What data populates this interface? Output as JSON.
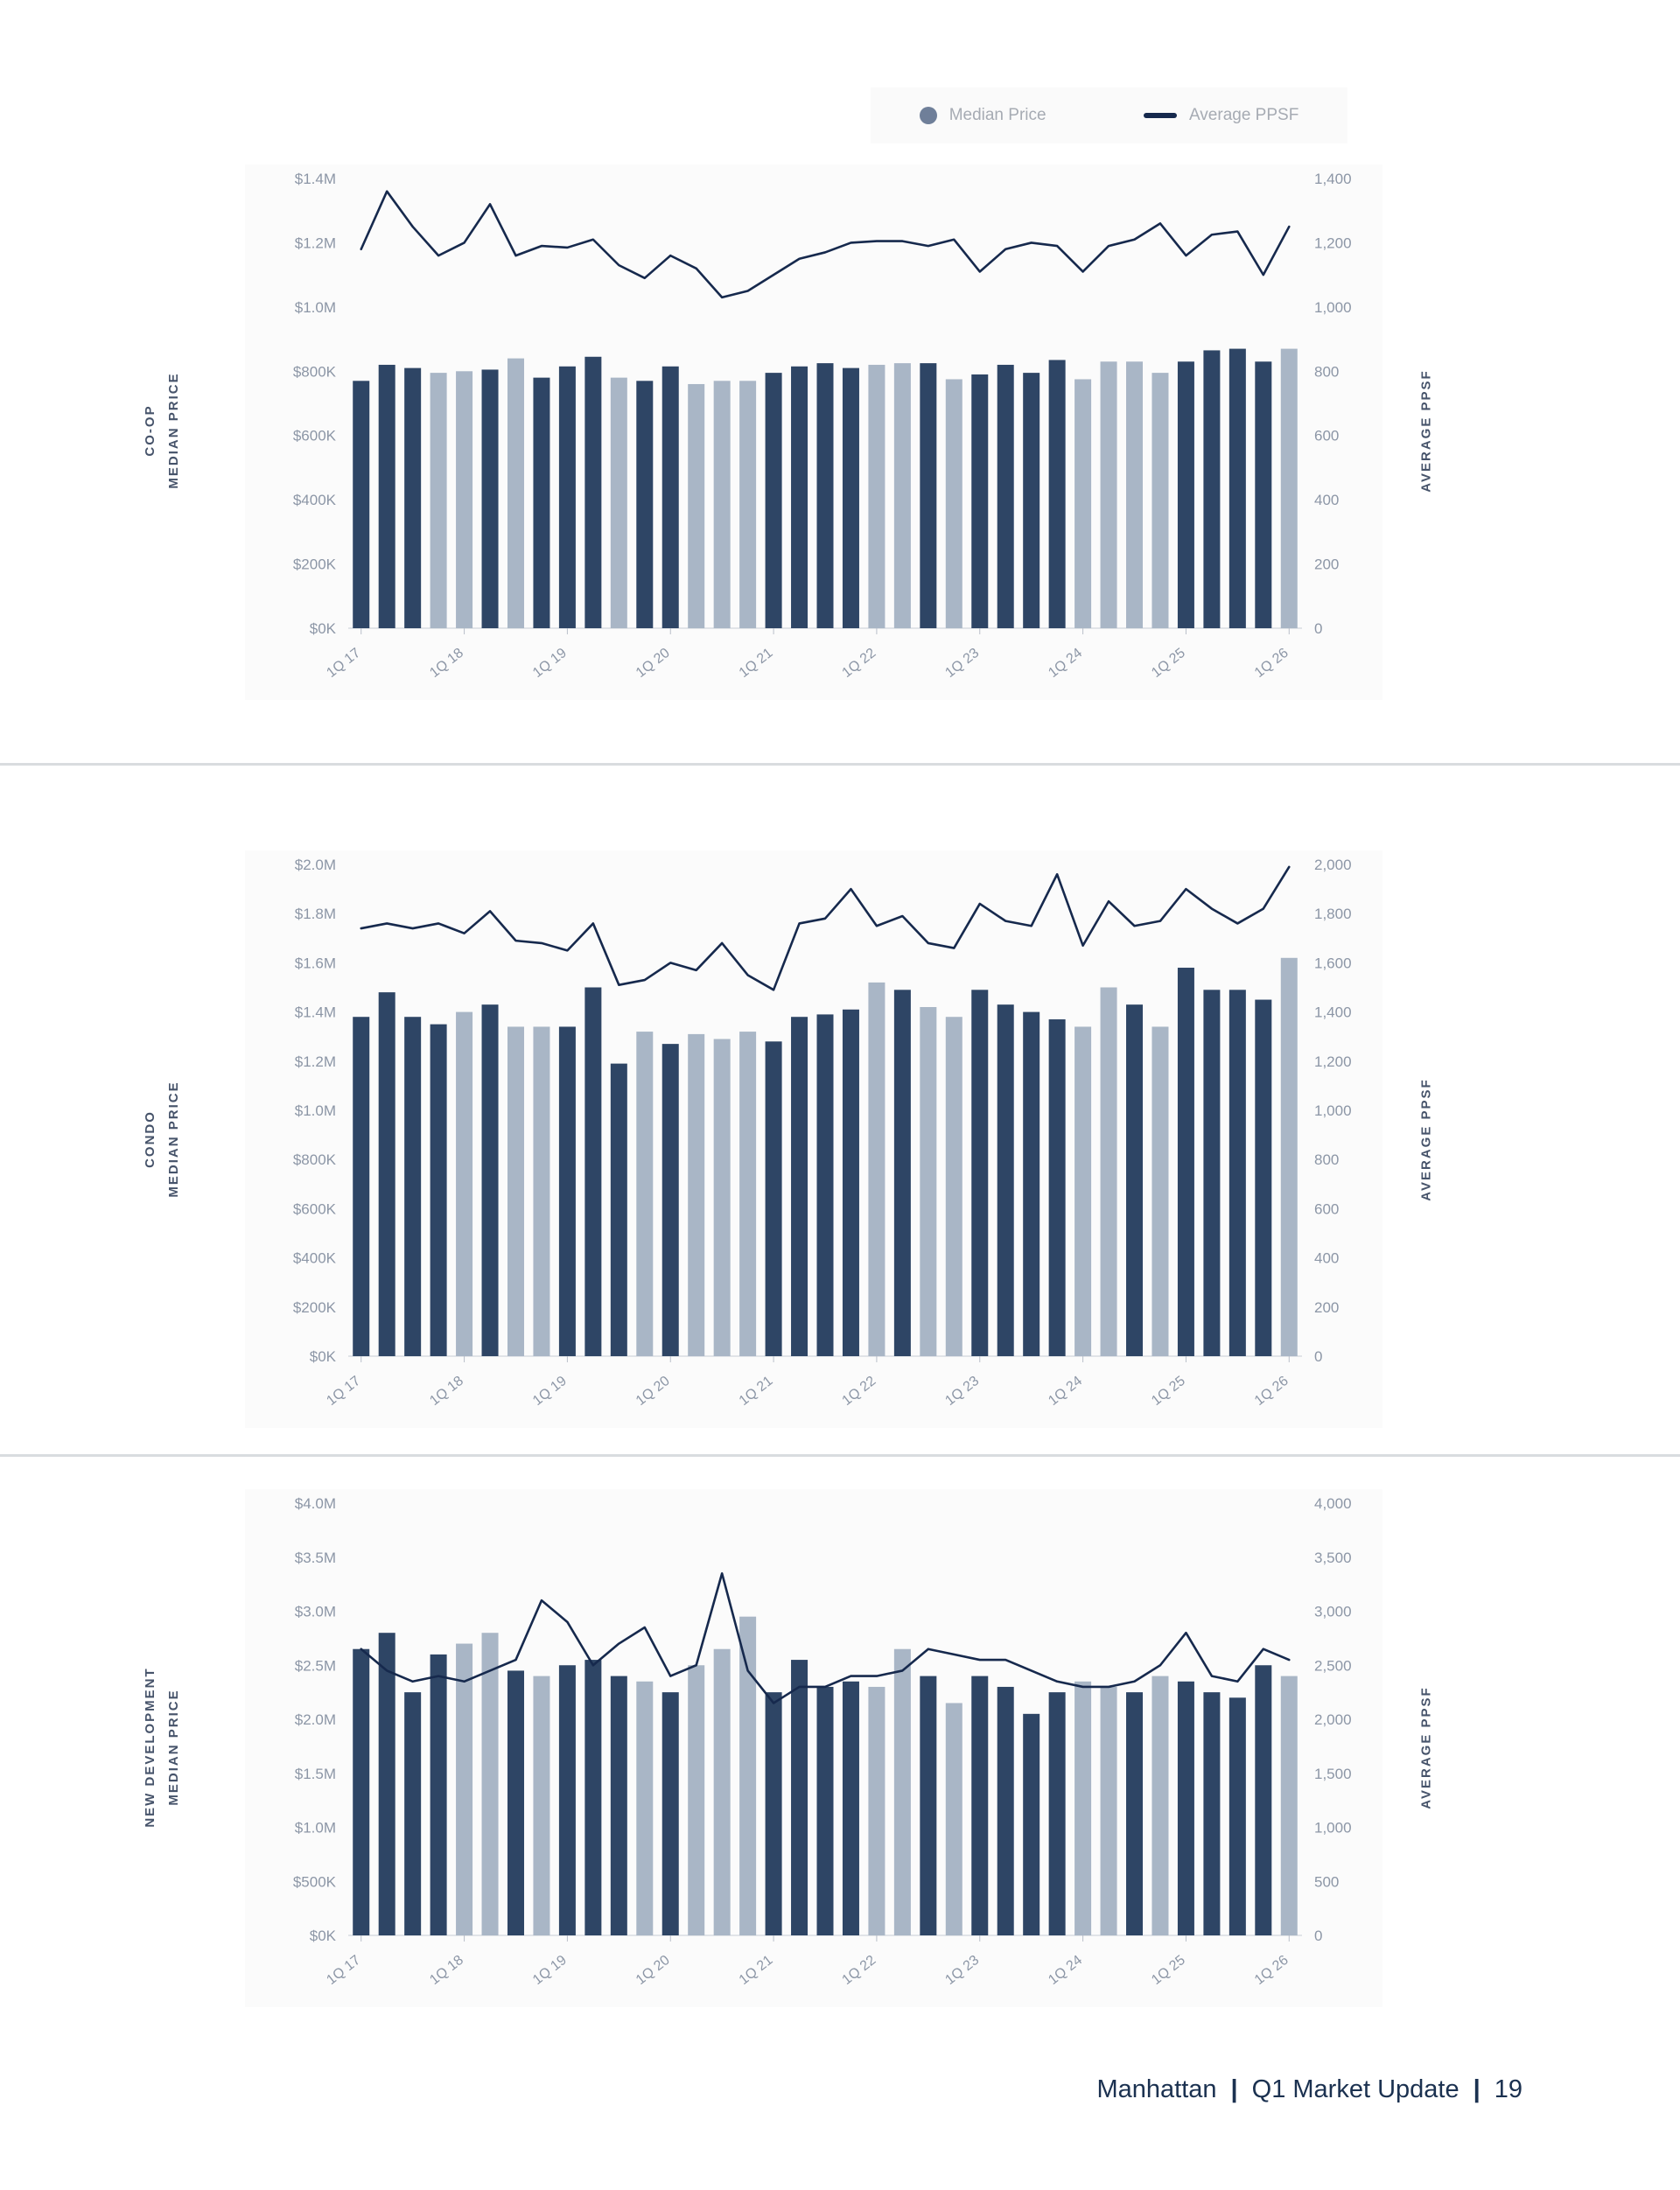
{
  "legend": {
    "median_label": "Median Price",
    "ppsf_label": "Average PPSF"
  },
  "footer": {
    "left": "Manhattan",
    "sep": "|",
    "middle": "Q1 Market Update",
    "page": "19"
  },
  "colors": {
    "bar_dark": "#2e4565",
    "bar_light": "#a9b6c6",
    "line": "#16294d",
    "axis_text": "#8c96a6",
    "legend_dot": "#6f7f99"
  },
  "chart_data": [
    {
      "type": "bar",
      "section_label": "CO-OP",
      "axis_label_left": "MEDIAN PRICE",
      "axis_label_right": "AVERAGE PPSF",
      "categories": [
        "1Q17",
        "2Q17",
        "3Q17",
        "4Q17",
        "1Q18",
        "2Q18",
        "3Q18",
        "4Q18",
        "1Q19",
        "2Q19",
        "3Q19",
        "4Q19",
        "1Q20",
        "2Q20",
        "3Q20",
        "4Q20",
        "1Q21",
        "2Q21",
        "3Q21",
        "4Q21",
        "1Q22",
        "2Q22",
        "3Q22",
        "4Q22",
        "1Q23",
        "2Q23",
        "3Q23",
        "4Q23",
        "1Q24",
        "2Q24",
        "3Q24",
        "4Q24",
        "1Q25",
        "2Q25",
        "3Q25",
        "4Q25",
        "1Q26"
      ],
      "series": [
        {
          "name": "Median Price",
          "unit": "USD thousands",
          "values": [
            770,
            820,
            810,
            795,
            800,
            805,
            840,
            780,
            815,
            845,
            780,
            770,
            815,
            760,
            770,
            770,
            795,
            815,
            825,
            810,
            820,
            825,
            825,
            775,
            790,
            820,
            795,
            835,
            775,
            830,
            830,
            795,
            830,
            865,
            870,
            830,
            870
          ]
        },
        {
          "name": "Average PPSF",
          "unit": "USD per sq ft",
          "values": [
            1180,
            1360,
            1250,
            1160,
            1200,
            1320,
            1160,
            1190,
            1185,
            1210,
            1130,
            1090,
            1160,
            1120,
            1030,
            1050,
            1100,
            1150,
            1170,
            1200,
            1205,
            1205,
            1190,
            1210,
            1110,
            1180,
            1200,
            1190,
            1110,
            1190,
            1210,
            1260,
            1160,
            1225,
            1235,
            1100,
            1250
          ]
        }
      ],
      "bar_shades": [
        "d",
        "d",
        "d",
        "l",
        "l",
        "d",
        "l",
        "d",
        "d",
        "d",
        "l",
        "d",
        "d",
        "l",
        "l",
        "l",
        "d",
        "d",
        "d",
        "d",
        "l",
        "l",
        "d",
        "l",
        "d",
        "d",
        "d",
        "d",
        "l",
        "l",
        "l",
        "l",
        "d",
        "d",
        "d",
        "d",
        "l"
      ],
      "left_max": 1400,
      "right_max": 1400,
      "xtick_every": 4,
      "left_ticks": [
        {
          "v": 0,
          "label": "$0K"
        },
        {
          "v": 200,
          "label": "$200K"
        },
        {
          "v": 400,
          "label": "$400K"
        },
        {
          "v": 600,
          "label": "$600K"
        },
        {
          "v": 800,
          "label": "$800K"
        },
        {
          "v": 1000,
          "label": "$1.0M"
        },
        {
          "v": 1200,
          "label": "$1.2M"
        },
        {
          "v": 1400,
          "label": "$1.4M"
        }
      ],
      "right_ticks": [
        {
          "v": 0,
          "label": "0"
        },
        {
          "v": 200,
          "label": "200"
        },
        {
          "v": 400,
          "label": "400"
        },
        {
          "v": 600,
          "label": "600"
        },
        {
          "v": 800,
          "label": "800"
        },
        {
          "v": 1000,
          "label": "1,000"
        },
        {
          "v": 1200,
          "label": "1,200"
        },
        {
          "v": 1400,
          "label": "1,400"
        }
      ]
    },
    {
      "type": "bar",
      "section_label": "CONDO",
      "axis_label_left": "MEDIAN PRICE",
      "axis_label_right": "AVERAGE PPSF",
      "categories": [
        "1Q17",
        "2Q17",
        "3Q17",
        "4Q17",
        "1Q18",
        "2Q18",
        "3Q18",
        "4Q18",
        "1Q19",
        "2Q19",
        "3Q19",
        "4Q19",
        "1Q20",
        "2Q20",
        "3Q20",
        "4Q20",
        "1Q21",
        "2Q21",
        "3Q21",
        "4Q21",
        "1Q22",
        "2Q22",
        "3Q22",
        "4Q22",
        "1Q23",
        "2Q23",
        "3Q23",
        "4Q23",
        "1Q24",
        "2Q24",
        "3Q24",
        "4Q24",
        "1Q25",
        "2Q25",
        "3Q25",
        "4Q25",
        "1Q26"
      ],
      "series": [
        {
          "name": "Median Price",
          "unit": "USD thousands",
          "values": [
            1380,
            1480,
            1380,
            1350,
            1400,
            1430,
            1340,
            1340,
            1340,
            1500,
            1190,
            1320,
            1270,
            1310,
            1290,
            1320,
            1280,
            1380,
            1390,
            1410,
            1520,
            1490,
            1420,
            1380,
            1490,
            1430,
            1400,
            1370,
            1340,
            1500,
            1430,
            1340,
            1580,
            1490,
            1490,
            1450,
            1620
          ]
        },
        {
          "name": "Average PPSF",
          "unit": "USD per sq ft",
          "values": [
            1740,
            1760,
            1740,
            1760,
            1720,
            1810,
            1690,
            1680,
            1650,
            1760,
            1510,
            1530,
            1600,
            1570,
            1680,
            1550,
            1490,
            1760,
            1780,
            1900,
            1750,
            1790,
            1680,
            1660,
            1840,
            1770,
            1750,
            1960,
            1670,
            1850,
            1750,
            1770,
            1900,
            1820,
            1760,
            1820,
            1990
          ]
        }
      ],
      "bar_shades": [
        "d",
        "d",
        "d",
        "d",
        "l",
        "d",
        "l",
        "l",
        "d",
        "d",
        "d",
        "l",
        "d",
        "l",
        "l",
        "l",
        "d",
        "d",
        "d",
        "d",
        "l",
        "d",
        "l",
        "l",
        "d",
        "d",
        "d",
        "d",
        "l",
        "l",
        "d",
        "l",
        "d",
        "d",
        "d",
        "d",
        "l"
      ],
      "left_max": 2000,
      "right_max": 2000,
      "xtick_every": 4,
      "left_ticks": [
        {
          "v": 0,
          "label": "$0K"
        },
        {
          "v": 200,
          "label": "$200K"
        },
        {
          "v": 400,
          "label": "$400K"
        },
        {
          "v": 600,
          "label": "$600K"
        },
        {
          "v": 800,
          "label": "$800K"
        },
        {
          "v": 1000,
          "label": "$1.0M"
        },
        {
          "v": 1200,
          "label": "$1.2M"
        },
        {
          "v": 1400,
          "label": "$1.4M"
        },
        {
          "v": 1600,
          "label": "$1.6M"
        },
        {
          "v": 1800,
          "label": "$1.8M"
        },
        {
          "v": 2000,
          "label": "$2.0M"
        }
      ],
      "right_ticks": [
        {
          "v": 0,
          "label": "0"
        },
        {
          "v": 200,
          "label": "200"
        },
        {
          "v": 400,
          "label": "400"
        },
        {
          "v": 600,
          "label": "600"
        },
        {
          "v": 800,
          "label": "800"
        },
        {
          "v": 1000,
          "label": "1,000"
        },
        {
          "v": 1200,
          "label": "1,200"
        },
        {
          "v": 1400,
          "label": "1,400"
        },
        {
          "v": 1600,
          "label": "1,600"
        },
        {
          "v": 1800,
          "label": "1,800"
        },
        {
          "v": 2000,
          "label": "2,000"
        }
      ]
    },
    {
      "type": "bar",
      "section_label": "NEW DEVELOPMENT",
      "axis_label_left": "MEDIAN PRICE",
      "axis_label_right": "AVERAGE PPSF",
      "categories": [
        "1Q17",
        "2Q17",
        "3Q17",
        "4Q17",
        "1Q18",
        "2Q18",
        "3Q18",
        "4Q18",
        "1Q19",
        "2Q19",
        "3Q19",
        "4Q19",
        "1Q20",
        "2Q20",
        "3Q20",
        "4Q20",
        "1Q21",
        "2Q21",
        "3Q21",
        "4Q21",
        "1Q22",
        "2Q22",
        "3Q22",
        "4Q22",
        "1Q23",
        "2Q23",
        "3Q23",
        "4Q23",
        "1Q24",
        "2Q24",
        "3Q24",
        "4Q24",
        "1Q25",
        "2Q25",
        "3Q25",
        "4Q25",
        "1Q26"
      ],
      "series": [
        {
          "name": "Median Price",
          "unit": "USD thousands",
          "values": [
            2650,
            2800,
            2250,
            2600,
            2700,
            2800,
            2450,
            2400,
            2500,
            2550,
            2400,
            2350,
            2250,
            2500,
            2650,
            2950,
            2250,
            2550,
            2300,
            2350,
            2300,
            2650,
            2400,
            2150,
            2400,
            2300,
            2050,
            2250,
            2350,
            2300,
            2250,
            2400,
            2350,
            2250,
            2200,
            2500,
            2400
          ]
        },
        {
          "name": "Average PPSF",
          "unit": "USD per sq ft",
          "values": [
            2650,
            2450,
            2350,
            2400,
            2350,
            2450,
            2550,
            3100,
            2900,
            2500,
            2700,
            2850,
            2400,
            2500,
            3350,
            2450,
            2150,
            2300,
            2300,
            2400,
            2400,
            2450,
            2650,
            2600,
            2550,
            2550,
            2450,
            2350,
            2300,
            2300,
            2350,
            2500,
            2800,
            2400,
            2350,
            2650,
            2550
          ]
        }
      ],
      "bar_shades": [
        "d",
        "d",
        "d",
        "d",
        "l",
        "l",
        "d",
        "l",
        "d",
        "d",
        "d",
        "l",
        "d",
        "l",
        "l",
        "l",
        "d",
        "d",
        "d",
        "d",
        "l",
        "l",
        "d",
        "l",
        "d",
        "d",
        "d",
        "d",
        "l",
        "l",
        "d",
        "l",
        "d",
        "d",
        "d",
        "d",
        "l"
      ],
      "left_max": 4000,
      "right_max": 4000,
      "xtick_every": 4,
      "left_ticks": [
        {
          "v": 0,
          "label": "$0K"
        },
        {
          "v": 500,
          "label": "$500K"
        },
        {
          "v": 1000,
          "label": "$1.0M"
        },
        {
          "v": 1500,
          "label": "$1.5M"
        },
        {
          "v": 2000,
          "label": "$2.0M"
        },
        {
          "v": 2500,
          "label": "$2.5M"
        },
        {
          "v": 3000,
          "label": "$3.0M"
        },
        {
          "v": 3500,
          "label": "$3.5M"
        },
        {
          "v": 4000,
          "label": "$4.0M"
        }
      ],
      "right_ticks": [
        {
          "v": 0,
          "label": "0"
        },
        {
          "v": 500,
          "label": "500"
        },
        {
          "v": 1000,
          "label": "1,000"
        },
        {
          "v": 1500,
          "label": "1,500"
        },
        {
          "v": 2000,
          "label": "2,000"
        },
        {
          "v": 2500,
          "label": "2,500"
        },
        {
          "v": 3000,
          "label": "3,000"
        },
        {
          "v": 3500,
          "label": "3,500"
        },
        {
          "v": 4000,
          "label": "4,000"
        }
      ]
    }
  ]
}
